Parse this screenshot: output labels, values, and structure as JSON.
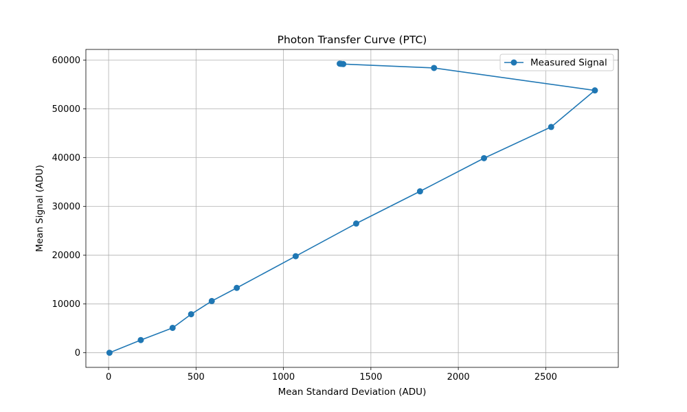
{
  "chart_data": {
    "type": "line",
    "title": "Photon Transfer Curve (PTC)",
    "xlabel": "Mean Standard Deviation (ADU)",
    "ylabel": "Mean Signal (ADU)",
    "xlim": [
      -130,
      2915
    ],
    "ylim": [
      -3000,
      62200
    ],
    "xticks": [
      0,
      500,
      1000,
      1500,
      2000,
      2500
    ],
    "yticks": [
      0,
      10000,
      20000,
      30000,
      40000,
      50000,
      60000
    ],
    "grid": true,
    "legend_position": "top-right",
    "series": [
      {
        "name": "Measured Signal",
        "color": "#1f77b4",
        "marker": "circle",
        "points": [
          {
            "x": 5,
            "y": 0
          },
          {
            "x": 184,
            "y": 2600
          },
          {
            "x": 366,
            "y": 5100
          },
          {
            "x": 472,
            "y": 7900
          },
          {
            "x": 590,
            "y": 10600
          },
          {
            "x": 733,
            "y": 13300
          },
          {
            "x": 1070,
            "y": 19800
          },
          {
            "x": 1416,
            "y": 26500
          },
          {
            "x": 1781,
            "y": 33100
          },
          {
            "x": 2147,
            "y": 39900
          },
          {
            "x": 2531,
            "y": 46300
          },
          {
            "x": 2781,
            "y": 53800
          },
          {
            "x": 1861,
            "y": 58400
          },
          {
            "x": 1342,
            "y": 59200
          },
          {
            "x": 1330,
            "y": 59250
          },
          {
            "x": 1322,
            "y": 59280
          }
        ]
      }
    ]
  }
}
